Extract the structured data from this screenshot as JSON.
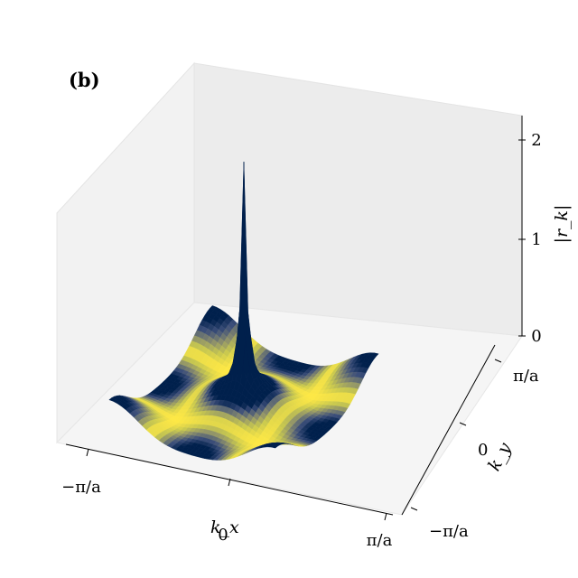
{
  "chart_data": {
    "type": "surface",
    "panel_label": "(b)",
    "title": "",
    "xlabel": "k_x",
    "ylabel": "k_y",
    "zlabel": "|r_k|",
    "x_ticks": [
      {
        "value": -3.1416,
        "label": "−π/a"
      },
      {
        "value": 0,
        "label": "0"
      },
      {
        "value": 3.1416,
        "label": "π/a"
      }
    ],
    "y_ticks": [
      {
        "value": -3.1416,
        "label": "−π/a"
      },
      {
        "value": 0,
        "label": "0"
      },
      {
        "value": 3.1416,
        "label": "π/a"
      }
    ],
    "z_ticks": [
      {
        "value": 0,
        "label": "0"
      },
      {
        "value": 1,
        "label": "1"
      },
      {
        "value": 2,
        "label": "2"
      }
    ],
    "xlim": [
      -3.1416,
      3.1416
    ],
    "ylim": [
      -3.1416,
      3.1416
    ],
    "zlim": [
      0,
      2.2
    ],
    "grid": false,
    "colormap": [
      "#ffe945",
      "#c8c84f",
      "#8a8d6c",
      "#3d4f7a",
      "#00204c"
    ],
    "peak": {
      "kx": 0,
      "ky": 0,
      "height": 1.95
    },
    "description_of_values": "|r_k| is near 0 (yellow) along the lines k_x = ±π/(2a), k_y = ±π/(2a) and rises toward the centre (dark blue), with a sharp singular peak at k = 0 reaching about 1.95."
  }
}
